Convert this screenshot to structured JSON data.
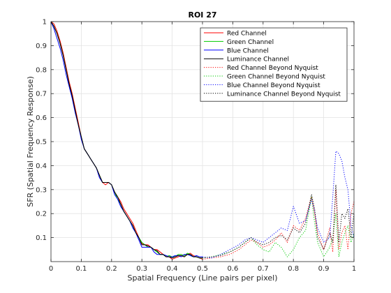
{
  "colors": {
    "red": "#ff0000",
    "green": "#00cc00",
    "blue": "#0000ff",
    "luminance": "#000000",
    "grid": "#e3e3e3",
    "axis": "#262626"
  },
  "chart_data": {
    "type": "line",
    "title": "ROI 27",
    "xlabel": "Spatial Frequency (Line pairs per pixel)",
    "ylabel": "SFR (Spatial Frequency Response)",
    "xlim": [
      0,
      1
    ],
    "ylim": [
      0,
      1
    ],
    "grid": true,
    "legend_position": "top-right",
    "xticks": [
      0,
      0.1,
      0.2,
      0.3,
      0.4,
      0.5,
      0.6,
      0.7,
      0.8,
      0.9,
      1
    ],
    "xtick_labels": [
      "0",
      "0.1",
      "0.2",
      "0.3",
      "0.4",
      "0.5",
      "0.6",
      "0.7",
      "0.8",
      "0.9",
      "1"
    ],
    "yticks": [
      0.1,
      0.2,
      0.3,
      0.4,
      0.5,
      0.6,
      0.7,
      0.8,
      0.9,
      1
    ],
    "ytick_labels": [
      "0.1",
      "0.2",
      "0.3",
      "0.4",
      "0.5",
      "0.6",
      "0.7",
      "0.8",
      "0.9",
      "1"
    ],
    "series": [
      {
        "name": "Red Channel",
        "color": "#ff0000",
        "style": "solid",
        "x": [
          0,
          0.01,
          0.02,
          0.03,
          0.04,
          0.05,
          0.06,
          0.07,
          0.08,
          0.09,
          0.1,
          0.11,
          0.12,
          0.13,
          0.14,
          0.15,
          0.16,
          0.17,
          0.18,
          0.19,
          0.2,
          0.21,
          0.22,
          0.23,
          0.24,
          0.25,
          0.26,
          0.27,
          0.28,
          0.29,
          0.3,
          0.31,
          0.32,
          0.33,
          0.34,
          0.35,
          0.36,
          0.37,
          0.38,
          0.39,
          0.4,
          0.41,
          0.42,
          0.43,
          0.44,
          0.45,
          0.46,
          0.47,
          0.48,
          0.49,
          0.5
        ],
        "y": [
          1.0,
          0.99,
          0.96,
          0.92,
          0.87,
          0.81,
          0.75,
          0.7,
          0.64,
          0.58,
          0.52,
          0.47,
          0.45,
          0.43,
          0.41,
          0.39,
          0.36,
          0.33,
          0.32,
          0.33,
          0.32,
          0.29,
          0.27,
          0.25,
          0.22,
          0.2,
          0.18,
          0.16,
          0.13,
          0.1,
          0.075,
          0.07,
          0.07,
          0.06,
          0.05,
          0.05,
          0.04,
          0.03,
          0.02,
          0.02,
          0.01,
          0.015,
          0.02,
          0.025,
          0.02,
          0.03,
          0.035,
          0.025,
          0.02,
          0.015,
          0.01
        ]
      },
      {
        "name": "Green Channel",
        "color": "#00cc00",
        "style": "solid",
        "x": [
          0,
          0.01,
          0.02,
          0.03,
          0.04,
          0.05,
          0.06,
          0.07,
          0.08,
          0.09,
          0.1,
          0.11,
          0.12,
          0.13,
          0.14,
          0.15,
          0.16,
          0.17,
          0.18,
          0.19,
          0.2,
          0.21,
          0.22,
          0.23,
          0.24,
          0.25,
          0.26,
          0.27,
          0.28,
          0.29,
          0.3,
          0.31,
          0.32,
          0.33,
          0.34,
          0.35,
          0.36,
          0.37,
          0.38,
          0.39,
          0.4,
          0.41,
          0.42,
          0.43,
          0.44,
          0.45,
          0.46,
          0.47,
          0.48,
          0.49,
          0.5
        ],
        "y": [
          1.0,
          0.98,
          0.95,
          0.91,
          0.86,
          0.8,
          0.74,
          0.69,
          0.63,
          0.57,
          0.52,
          0.47,
          0.45,
          0.43,
          0.41,
          0.39,
          0.36,
          0.33,
          0.33,
          0.33,
          0.32,
          0.29,
          0.26,
          0.24,
          0.21,
          0.19,
          0.17,
          0.15,
          0.12,
          0.1,
          0.08,
          0.07,
          0.06,
          0.06,
          0.05,
          0.04,
          0.03,
          0.03,
          0.02,
          0.025,
          0.02,
          0.02,
          0.03,
          0.03,
          0.025,
          0.035,
          0.03,
          0.02,
          0.02,
          0.015,
          0.015
        ]
      },
      {
        "name": "Blue Channel",
        "color": "#0000ff",
        "style": "solid",
        "x": [
          0,
          0.01,
          0.02,
          0.03,
          0.04,
          0.05,
          0.06,
          0.07,
          0.08,
          0.09,
          0.1,
          0.11,
          0.12,
          0.13,
          0.14,
          0.15,
          0.16,
          0.17,
          0.18,
          0.19,
          0.2,
          0.21,
          0.22,
          0.23,
          0.24,
          0.25,
          0.26,
          0.27,
          0.28,
          0.29,
          0.3,
          0.31,
          0.32,
          0.33,
          0.34,
          0.35,
          0.36,
          0.37,
          0.38,
          0.39,
          0.4,
          0.41,
          0.42,
          0.43,
          0.44,
          0.45,
          0.46,
          0.47,
          0.48,
          0.49,
          0.5
        ],
        "y": [
          1.0,
          0.97,
          0.93,
          0.89,
          0.84,
          0.78,
          0.73,
          0.68,
          0.62,
          0.57,
          0.51,
          0.47,
          0.45,
          0.43,
          0.41,
          0.39,
          0.35,
          0.33,
          0.33,
          0.33,
          0.32,
          0.28,
          0.26,
          0.23,
          0.21,
          0.19,
          0.17,
          0.14,
          0.12,
          0.09,
          0.06,
          0.06,
          0.06,
          0.06,
          0.04,
          0.03,
          0.03,
          0.03,
          0.025,
          0.02,
          0.02,
          0.025,
          0.025,
          0.02,
          0.03,
          0.03,
          0.025,
          0.02,
          0.025,
          0.02,
          0.02
        ]
      },
      {
        "name": "Luminance Channel",
        "color": "#000000",
        "style": "solid",
        "x": [
          0,
          0.01,
          0.02,
          0.03,
          0.04,
          0.05,
          0.06,
          0.07,
          0.08,
          0.09,
          0.1,
          0.11,
          0.12,
          0.13,
          0.14,
          0.15,
          0.16,
          0.17,
          0.18,
          0.19,
          0.2,
          0.21,
          0.22,
          0.23,
          0.24,
          0.25,
          0.26,
          0.27,
          0.28,
          0.29,
          0.3,
          0.31,
          0.32,
          0.33,
          0.34,
          0.35,
          0.36,
          0.37,
          0.38,
          0.39,
          0.4,
          0.41,
          0.42,
          0.43,
          0.44,
          0.45,
          0.46,
          0.47,
          0.48,
          0.49,
          0.5
        ],
        "y": [
          1.0,
          0.98,
          0.95,
          0.91,
          0.86,
          0.8,
          0.74,
          0.69,
          0.63,
          0.57,
          0.52,
          0.47,
          0.45,
          0.43,
          0.41,
          0.39,
          0.36,
          0.33,
          0.33,
          0.33,
          0.32,
          0.29,
          0.27,
          0.24,
          0.21,
          0.19,
          0.17,
          0.15,
          0.12,
          0.1,
          0.07,
          0.07,
          0.065,
          0.06,
          0.05,
          0.045,
          0.03,
          0.03,
          0.02,
          0.02,
          0.015,
          0.02,
          0.025,
          0.025,
          0.02,
          0.03,
          0.03,
          0.02,
          0.02,
          0.015,
          0.015
        ]
      },
      {
        "name": "Red Channel Beyond Nyquist",
        "color": "#ff0000",
        "style": "dotted",
        "x": [
          0.5,
          0.53,
          0.56,
          0.59,
          0.62,
          0.64,
          0.66,
          0.68,
          0.7,
          0.72,
          0.74,
          0.76,
          0.78,
          0.8,
          0.82,
          0.84,
          0.86,
          0.87,
          0.88,
          0.9,
          0.92,
          0.93,
          0.94,
          0.95,
          0.96,
          0.97,
          0.98,
          0.99,
          1.0
        ],
        "y": [
          0.01,
          0.015,
          0.02,
          0.03,
          0.05,
          0.07,
          0.09,
          0.08,
          0.06,
          0.07,
          0.09,
          0.12,
          0.08,
          0.15,
          0.13,
          0.18,
          0.27,
          0.2,
          0.12,
          0.05,
          0.14,
          0.04,
          0.3,
          0.05,
          0.12,
          0.15,
          0.05,
          0.2,
          0.25
        ]
      },
      {
        "name": "Green Channel Beyond Nyquist",
        "color": "#00cc00",
        "style": "dotted",
        "x": [
          0.5,
          0.53,
          0.56,
          0.59,
          0.62,
          0.64,
          0.66,
          0.68,
          0.7,
          0.72,
          0.74,
          0.76,
          0.78,
          0.8,
          0.82,
          0.84,
          0.86,
          0.87,
          0.88,
          0.9,
          0.92,
          0.93,
          0.94,
          0.95,
          0.96,
          0.97,
          0.98,
          0.99,
          1.0
        ],
        "y": [
          0.015,
          0.02,
          0.03,
          0.04,
          0.06,
          0.08,
          0.1,
          0.07,
          0.05,
          0.04,
          0.08,
          0.06,
          0.02,
          0.05,
          0.1,
          0.13,
          0.27,
          0.16,
          0.08,
          0.02,
          0.06,
          0.1,
          0.2,
          0.02,
          0.08,
          0.12,
          0.15,
          0.08,
          0.12
        ]
      },
      {
        "name": "Blue Channel Beyond Nyquist",
        "color": "#0000ff",
        "style": "dotted",
        "x": [
          0.5,
          0.53,
          0.56,
          0.59,
          0.62,
          0.64,
          0.66,
          0.68,
          0.7,
          0.72,
          0.74,
          0.76,
          0.78,
          0.8,
          0.82,
          0.84,
          0.86,
          0.87,
          0.88,
          0.9,
          0.92,
          0.93,
          0.94,
          0.95,
          0.96,
          0.97,
          0.98,
          0.99,
          1.0
        ],
        "y": [
          0.02,
          0.015,
          0.03,
          0.05,
          0.07,
          0.09,
          0.1,
          0.09,
          0.08,
          0.1,
          0.12,
          0.14,
          0.13,
          0.23,
          0.16,
          0.17,
          0.26,
          0.21,
          0.14,
          0.08,
          0.1,
          0.27,
          0.46,
          0.45,
          0.42,
          0.35,
          0.3,
          0.15,
          0.1
        ]
      },
      {
        "name": "Luminance Channel Beyond Nyquist",
        "color": "#000000",
        "style": "dotted",
        "x": [
          0.5,
          0.53,
          0.56,
          0.59,
          0.62,
          0.64,
          0.66,
          0.68,
          0.7,
          0.72,
          0.74,
          0.76,
          0.78,
          0.8,
          0.82,
          0.84,
          0.86,
          0.87,
          0.88,
          0.9,
          0.92,
          0.93,
          0.94,
          0.95,
          0.96,
          0.97,
          0.98,
          0.99,
          1.0
        ],
        "y": [
          0.015,
          0.02,
          0.025,
          0.04,
          0.06,
          0.08,
          0.1,
          0.08,
          0.07,
          0.08,
          0.1,
          0.11,
          0.09,
          0.14,
          0.12,
          0.16,
          0.28,
          0.22,
          0.1,
          0.05,
          0.12,
          0.08,
          0.32,
          0.08,
          0.2,
          0.18,
          0.22,
          0.1,
          0.2
        ]
      }
    ]
  }
}
